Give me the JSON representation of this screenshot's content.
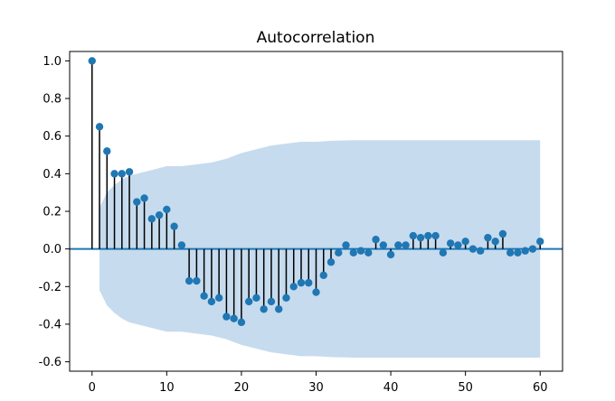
{
  "chart_data": {
    "type": "stem",
    "title": "Autocorrelation",
    "xlabel": "",
    "ylabel": "",
    "xlim": [
      -3,
      63
    ],
    "ylim": [
      -0.65,
      1.05
    ],
    "xticks": [
      0,
      10,
      20,
      30,
      40,
      50,
      60
    ],
    "yticks": [
      1.0,
      0.8,
      0.6,
      0.4,
      0.2,
      0.0,
      -0.2,
      -0.4,
      -0.6
    ],
    "grid": false,
    "colors": {
      "marker": "#1f77b4",
      "confidence_band": "#c6dbee",
      "zero_line": "#1f77b4",
      "stem": "#000000"
    },
    "lags": [
      0,
      1,
      2,
      3,
      4,
      5,
      6,
      7,
      8,
      9,
      10,
      11,
      12,
      13,
      14,
      15,
      16,
      17,
      18,
      19,
      20,
      21,
      22,
      23,
      24,
      25,
      26,
      27,
      28,
      29,
      30,
      31,
      32,
      33,
      34,
      35,
      36,
      37,
      38,
      39,
      40,
      41,
      42,
      43,
      44,
      45,
      46,
      47,
      48,
      49,
      50,
      51,
      52,
      53,
      54,
      55,
      56,
      57,
      58,
      59,
      60
    ],
    "values": [
      1.0,
      0.65,
      0.52,
      0.4,
      0.4,
      0.41,
      0.25,
      0.27,
      0.16,
      0.18,
      0.21,
      0.12,
      0.02,
      -0.17,
      -0.17,
      -0.25,
      -0.28,
      -0.26,
      -0.36,
      -0.37,
      -0.39,
      -0.28,
      -0.26,
      -0.32,
      -0.28,
      -0.32,
      -0.26,
      -0.2,
      -0.18,
      -0.18,
      -0.23,
      -0.14,
      -0.07,
      -0.02,
      0.02,
      -0.02,
      -0.01,
      -0.02,
      0.05,
      0.02,
      -0.03,
      0.02,
      0.02,
      0.07,
      0.06,
      0.07,
      0.07,
      -0.02,
      0.03,
      0.02,
      0.04,
      0.0,
      -0.01,
      0.06,
      0.04,
      0.08,
      -0.02,
      -0.02,
      -0.01,
      0.0,
      0.04
    ],
    "confidence_interval": {
      "lags": [
        1,
        2,
        3,
        4,
        5,
        6,
        8,
        10,
        12,
        14,
        16,
        18,
        20,
        22,
        24,
        26,
        28,
        30,
        32,
        35,
        40,
        45,
        50,
        55,
        60
      ],
      "upper": [
        0.22,
        0.3,
        0.34,
        0.37,
        0.39,
        0.4,
        0.42,
        0.44,
        0.44,
        0.45,
        0.46,
        0.48,
        0.51,
        0.53,
        0.55,
        0.56,
        0.57,
        0.57,
        0.575,
        0.578,
        0.578,
        0.578,
        0.578,
        0.578,
        0.578
      ]
    }
  }
}
